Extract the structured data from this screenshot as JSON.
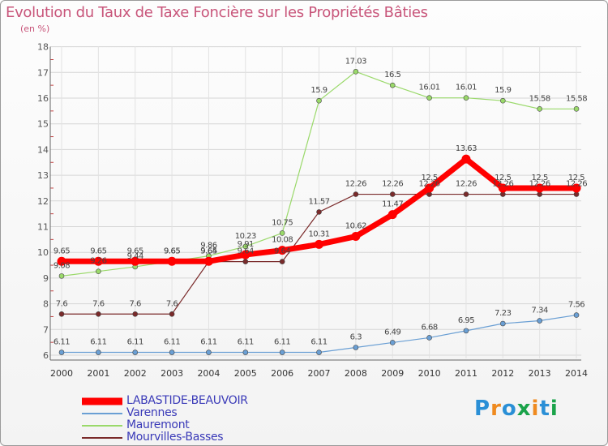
{
  "chart_data": {
    "type": "line",
    "title": "Evolution du Taux de Taxe Foncière sur les Propriétés Bâties",
    "subtitle": "(en %)",
    "xlabel": "",
    "ylabel": "",
    "ylim": [
      6,
      18
    ],
    "yticks": [
      "6",
      "7",
      "8",
      "9",
      "10",
      "11",
      "12",
      "13",
      "14",
      "15",
      "16",
      "17",
      "18"
    ],
    "categories": [
      "2000",
      "2001",
      "2002",
      "2003",
      "2004",
      "2005",
      "2006",
      "2007",
      "2008",
      "2009",
      "2010",
      "2011",
      "2012",
      "2013",
      "2014"
    ],
    "series": [
      {
        "name": "LABASTIDE-BEAUVOIR",
        "color": "#ff0000",
        "values": [
          9.65,
          9.65,
          9.65,
          9.65,
          9.65,
          9.91,
          10.08,
          10.31,
          10.62,
          11.47,
          12.5,
          13.63,
          12.5,
          12.5,
          12.5
        ],
        "labels": [
          "9.65",
          "9.65",
          "9.65",
          "9.65",
          "9.65",
          "9.91",
          "10.08",
          "10.31",
          "10.62",
          "11.47",
          "12.5",
          "13.63",
          "12.5",
          "12.5",
          "12.5"
        ]
      },
      {
        "name": "Varennes",
        "color": "#6a9fd4",
        "values": [
          6.11,
          6.11,
          6.11,
          6.11,
          6.11,
          6.11,
          6.11,
          6.11,
          6.3,
          6.49,
          6.68,
          6.95,
          7.23,
          7.34,
          7.56
        ],
        "labels": [
          "6.11",
          "6.11",
          "6.11",
          "6.11",
          "6.11",
          "6.11",
          "6.11",
          "6.11",
          "6.3",
          "6.49",
          "6.68",
          "6.95",
          "7.23",
          "7.34",
          "7.56"
        ]
      },
      {
        "name": "Mauremont",
        "color": "#9ad96a",
        "values": [
          9.08,
          9.26,
          9.44,
          9.65,
          9.86,
          10.23,
          10.75,
          15.9,
          17.03,
          16.5,
          16.01,
          16.01,
          15.9,
          15.58,
          15.58
        ],
        "labels": [
          "9.08",
          "9.26",
          "9.44",
          "9.65",
          "9.86",
          "10.23",
          "10.75",
          "15.9",
          "17.03",
          "16.5",
          "16.01",
          "16.01",
          "15.9",
          "15.58",
          "15.58"
        ]
      },
      {
        "name": "Mourvilles-Basses",
        "color": "#7a2a2a",
        "values": [
          7.6,
          7.6,
          7.6,
          7.6,
          9.64,
          9.64,
          9.64,
          11.57,
          12.26,
          12.26,
          12.26,
          12.26,
          12.26,
          12.26,
          12.26
        ],
        "labels": [
          "7.6",
          "7.6",
          "7.6",
          "7.6",
          "9.64",
          "9.64",
          "9.64",
          "11.57",
          "12.26",
          "12.26",
          "12.26",
          "12.26",
          "12.26",
          "12.26",
          "12.26"
        ]
      }
    ]
  },
  "logo": {
    "letters": [
      "P",
      "r",
      "o",
      "x",
      "i",
      "t",
      "i"
    ],
    "colors": [
      "#2a8fd6",
      "#ef8a1f",
      "#2a8fd6",
      "#1aa34a",
      "#ef8a1f",
      "#2a8fd6",
      "#1aa34a"
    ]
  }
}
